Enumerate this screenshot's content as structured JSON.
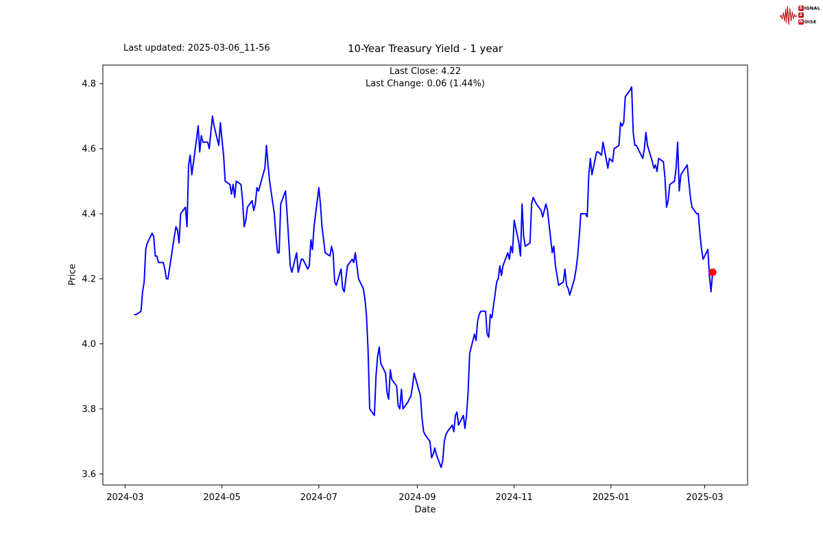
{
  "header": {
    "last_updated": "Last updated: 2025-03-06_11-56"
  },
  "logo": {
    "badge1": "S",
    "rest1": "IGNAL",
    "badge2": "2",
    "badge3": "N",
    "rest3": "OISE",
    "color": "#c41e24"
  },
  "chart_data": {
    "type": "line",
    "title": "10-Year Treasury Yield - 1 year",
    "subtitle_line1": "Last Close: 4.22",
    "subtitle_line2": "Last Change: 0.06 (1.44%)",
    "last_close": 4.22,
    "last_change": 0.06,
    "last_change_pct": "1.44%",
    "xlabel": "Date",
    "ylabel": "Price",
    "x_tick_labels": [
      "2024-03",
      "2024-05",
      "2024-07",
      "2024-09",
      "2024-11",
      "2025-01",
      "2025-03"
    ],
    "y_tick_labels": [
      "3.6",
      "3.8",
      "4.0",
      "4.2",
      "4.4",
      "4.6",
      "4.8"
    ],
    "xlim": [
      "2024-02-16",
      "2025-03-28"
    ],
    "ylim": [
      3.566,
      4.857
    ],
    "grid": false,
    "legend": "none",
    "line_color": "#0000ff",
    "marker_color": "#ff0000",
    "series": [
      {
        "name": "10-Year Treasury Yield",
        "points": [
          [
            "2024-03-07",
            4.09
          ],
          [
            "2024-03-08",
            4.09
          ],
          [
            "2024-03-11",
            4.1
          ],
          [
            "2024-03-12",
            4.16
          ],
          [
            "2024-03-13",
            4.19
          ],
          [
            "2024-03-14",
            4.29
          ],
          [
            "2024-03-15",
            4.31
          ],
          [
            "2024-03-18",
            4.34
          ],
          [
            "2024-03-19",
            4.33
          ],
          [
            "2024-03-20",
            4.27
          ],
          [
            "2024-03-21",
            4.27
          ],
          [
            "2024-03-22",
            4.25
          ],
          [
            "2024-03-25",
            4.25
          ],
          [
            "2024-03-26",
            4.23
          ],
          [
            "2024-03-27",
            4.2
          ],
          [
            "2024-03-28",
            4.2
          ],
          [
            "2024-04-01",
            4.33
          ],
          [
            "2024-04-02",
            4.36
          ],
          [
            "2024-04-03",
            4.35
          ],
          [
            "2024-04-04",
            4.31
          ],
          [
            "2024-04-05",
            4.4
          ],
          [
            "2024-04-08",
            4.42
          ],
          [
            "2024-04-09",
            4.36
          ],
          [
            "2024-04-10",
            4.55
          ],
          [
            "2024-04-11",
            4.58
          ],
          [
            "2024-04-12",
            4.52
          ],
          [
            "2024-04-15",
            4.63
          ],
          [
            "2024-04-16",
            4.67
          ],
          [
            "2024-04-17",
            4.59
          ],
          [
            "2024-04-18",
            4.64
          ],
          [
            "2024-04-19",
            4.62
          ],
          [
            "2024-04-22",
            4.62
          ],
          [
            "2024-04-23",
            4.6
          ],
          [
            "2024-04-24",
            4.65
          ],
          [
            "2024-04-25",
            4.7
          ],
          [
            "2024-04-26",
            4.67
          ],
          [
            "2024-04-29",
            4.61
          ],
          [
            "2024-04-30",
            4.68
          ],
          [
            "2024-05-01",
            4.63
          ],
          [
            "2024-05-02",
            4.58
          ],
          [
            "2024-05-03",
            4.5
          ],
          [
            "2024-05-06",
            4.49
          ],
          [
            "2024-05-07",
            4.46
          ],
          [
            "2024-05-08",
            4.49
          ],
          [
            "2024-05-09",
            4.45
          ],
          [
            "2024-05-10",
            4.5
          ],
          [
            "2024-05-13",
            4.49
          ],
          [
            "2024-05-14",
            4.44
          ],
          [
            "2024-05-15",
            4.36
          ],
          [
            "2024-05-16",
            4.38
          ],
          [
            "2024-05-17",
            4.42
          ],
          [
            "2024-05-20",
            4.44
          ],
          [
            "2024-05-21",
            4.41
          ],
          [
            "2024-05-22",
            4.43
          ],
          [
            "2024-05-23",
            4.48
          ],
          [
            "2024-05-24",
            4.47
          ],
          [
            "2024-05-28",
            4.54
          ],
          [
            "2024-05-29",
            4.61
          ],
          [
            "2024-05-30",
            4.55
          ],
          [
            "2024-05-31",
            4.5
          ],
          [
            "2024-06-03",
            4.4
          ],
          [
            "2024-06-04",
            4.33
          ],
          [
            "2024-06-05",
            4.28
          ],
          [
            "2024-06-06",
            4.28
          ],
          [
            "2024-06-07",
            4.43
          ],
          [
            "2024-06-10",
            4.47
          ],
          [
            "2024-06-11",
            4.4
          ],
          [
            "2024-06-12",
            4.32
          ],
          [
            "2024-06-13",
            4.24
          ],
          [
            "2024-06-14",
            4.22
          ],
          [
            "2024-06-17",
            4.28
          ],
          [
            "2024-06-18",
            4.22
          ],
          [
            "2024-06-20",
            4.26
          ],
          [
            "2024-06-21",
            4.26
          ],
          [
            "2024-06-24",
            4.23
          ],
          [
            "2024-06-25",
            4.24
          ],
          [
            "2024-06-26",
            4.32
          ],
          [
            "2024-06-27",
            4.29
          ],
          [
            "2024-06-28",
            4.36
          ],
          [
            "2024-07-01",
            4.48
          ],
          [
            "2024-07-02",
            4.43
          ],
          [
            "2024-07-03",
            4.36
          ],
          [
            "2024-07-05",
            4.28
          ],
          [
            "2024-07-08",
            4.27
          ],
          [
            "2024-07-09",
            4.3
          ],
          [
            "2024-07-10",
            4.28
          ],
          [
            "2024-07-11",
            4.19
          ],
          [
            "2024-07-12",
            4.18
          ],
          [
            "2024-07-15",
            4.23
          ],
          [
            "2024-07-16",
            4.17
          ],
          [
            "2024-07-17",
            4.16
          ],
          [
            "2024-07-18",
            4.2
          ],
          [
            "2024-07-19",
            4.24
          ],
          [
            "2024-07-22",
            4.26
          ],
          [
            "2024-07-23",
            4.25
          ],
          [
            "2024-07-24",
            4.28
          ],
          [
            "2024-07-25",
            4.24
          ],
          [
            "2024-07-26",
            4.2
          ],
          [
            "2024-07-29",
            4.17
          ],
          [
            "2024-07-30",
            4.14
          ],
          [
            "2024-07-31",
            4.09
          ],
          [
            "2024-08-01",
            3.98
          ],
          [
            "2024-08-02",
            3.8
          ],
          [
            "2024-08-05",
            3.78
          ],
          [
            "2024-08-06",
            3.9
          ],
          [
            "2024-08-07",
            3.96
          ],
          [
            "2024-08-08",
            3.99
          ],
          [
            "2024-08-09",
            3.94
          ],
          [
            "2024-08-12",
            3.91
          ],
          [
            "2024-08-13",
            3.85
          ],
          [
            "2024-08-14",
            3.83
          ],
          [
            "2024-08-15",
            3.92
          ],
          [
            "2024-08-16",
            3.89
          ],
          [
            "2024-08-19",
            3.87
          ],
          [
            "2024-08-20",
            3.81
          ],
          [
            "2024-08-21",
            3.8
          ],
          [
            "2024-08-22",
            3.86
          ],
          [
            "2024-08-23",
            3.8
          ],
          [
            "2024-08-26",
            3.82
          ],
          [
            "2024-08-27",
            3.83
          ],
          [
            "2024-08-28",
            3.84
          ],
          [
            "2024-08-29",
            3.87
          ],
          [
            "2024-08-30",
            3.91
          ],
          [
            "2024-09-03",
            3.84
          ],
          [
            "2024-09-04",
            3.77
          ],
          [
            "2024-09-05",
            3.73
          ],
          [
            "2024-09-06",
            3.72
          ],
          [
            "2024-09-09",
            3.7
          ],
          [
            "2024-09-10",
            3.65
          ],
          [
            "2024-09-11",
            3.66
          ],
          [
            "2024-09-12",
            3.68
          ],
          [
            "2024-09-13",
            3.66
          ],
          [
            "2024-09-16",
            3.62
          ],
          [
            "2024-09-17",
            3.64
          ],
          [
            "2024-09-18",
            3.7
          ],
          [
            "2024-09-19",
            3.72
          ],
          [
            "2024-09-20",
            3.73
          ],
          [
            "2024-09-23",
            3.75
          ],
          [
            "2024-09-24",
            3.73
          ],
          [
            "2024-09-25",
            3.78
          ],
          [
            "2024-09-26",
            3.79
          ],
          [
            "2024-09-27",
            3.75
          ],
          [
            "2024-09-30",
            3.78
          ],
          [
            "2024-10-01",
            3.74
          ],
          [
            "2024-10-02",
            3.78
          ],
          [
            "2024-10-03",
            3.85
          ],
          [
            "2024-10-04",
            3.97
          ],
          [
            "2024-10-07",
            4.03
          ],
          [
            "2024-10-08",
            4.01
          ],
          [
            "2024-10-09",
            4.07
          ],
          [
            "2024-10-10",
            4.09
          ],
          [
            "2024-10-11",
            4.1
          ],
          [
            "2024-10-14",
            4.1
          ],
          [
            "2024-10-15",
            4.03
          ],
          [
            "2024-10-16",
            4.02
          ],
          [
            "2024-10-17",
            4.09
          ],
          [
            "2024-10-18",
            4.08
          ],
          [
            "2024-10-21",
            4.19
          ],
          [
            "2024-10-22",
            4.2
          ],
          [
            "2024-10-23",
            4.24
          ],
          [
            "2024-10-24",
            4.21
          ],
          [
            "2024-10-25",
            4.24
          ],
          [
            "2024-10-28",
            4.28
          ],
          [
            "2024-10-29",
            4.26
          ],
          [
            "2024-10-30",
            4.3
          ],
          [
            "2024-10-31",
            4.28
          ],
          [
            "2024-11-01",
            4.38
          ],
          [
            "2024-11-04",
            4.31
          ],
          [
            "2024-11-05",
            4.27
          ],
          [
            "2024-11-06",
            4.43
          ],
          [
            "2024-11-07",
            4.33
          ],
          [
            "2024-11-08",
            4.3
          ],
          [
            "2024-11-11",
            4.31
          ],
          [
            "2024-11-12",
            4.43
          ],
          [
            "2024-11-13",
            4.45
          ],
          [
            "2024-11-14",
            4.44
          ],
          [
            "2024-11-15",
            4.43
          ],
          [
            "2024-11-18",
            4.41
          ],
          [
            "2024-11-19",
            4.39
          ],
          [
            "2024-11-20",
            4.41
          ],
          [
            "2024-11-21",
            4.43
          ],
          [
            "2024-11-22",
            4.41
          ],
          [
            "2024-11-25",
            4.28
          ],
          [
            "2024-11-26",
            4.3
          ],
          [
            "2024-11-27",
            4.24
          ],
          [
            "2024-11-29",
            4.18
          ],
          [
            "2024-12-02",
            4.19
          ],
          [
            "2024-12-03",
            4.23
          ],
          [
            "2024-12-04",
            4.18
          ],
          [
            "2024-12-05",
            4.17
          ],
          [
            "2024-12-06",
            4.15
          ],
          [
            "2024-12-09",
            4.2
          ],
          [
            "2024-12-10",
            4.23
          ],
          [
            "2024-12-11",
            4.27
          ],
          [
            "2024-12-12",
            4.33
          ],
          [
            "2024-12-13",
            4.4
          ],
          [
            "2024-12-16",
            4.4
          ],
          [
            "2024-12-17",
            4.39
          ],
          [
            "2024-12-18",
            4.52
          ],
          [
            "2024-12-19",
            4.57
          ],
          [
            "2024-12-20",
            4.52
          ],
          [
            "2024-12-23",
            4.59
          ],
          [
            "2024-12-24",
            4.59
          ],
          [
            "2024-12-26",
            4.58
          ],
          [
            "2024-12-27",
            4.62
          ],
          [
            "2024-12-30",
            4.54
          ],
          [
            "2024-12-31",
            4.57
          ],
          [
            "2025-01-02",
            4.56
          ],
          [
            "2025-01-03",
            4.6
          ],
          [
            "2025-01-06",
            4.61
          ],
          [
            "2025-01-07",
            4.68
          ],
          [
            "2025-01-08",
            4.67
          ],
          [
            "2025-01-09",
            4.68
          ],
          [
            "2025-01-10",
            4.76
          ],
          [
            "2025-01-13",
            4.78
          ],
          [
            "2025-01-14",
            4.79
          ],
          [
            "2025-01-15",
            4.65
          ],
          [
            "2025-01-16",
            4.61
          ],
          [
            "2025-01-17",
            4.61
          ],
          [
            "2025-01-21",
            4.57
          ],
          [
            "2025-01-22",
            4.6
          ],
          [
            "2025-01-23",
            4.65
          ],
          [
            "2025-01-24",
            4.61
          ],
          [
            "2025-01-27",
            4.56
          ],
          [
            "2025-01-28",
            4.54
          ],
          [
            "2025-01-29",
            4.55
          ],
          [
            "2025-01-30",
            4.53
          ],
          [
            "2025-01-31",
            4.57
          ],
          [
            "2025-02-03",
            4.56
          ],
          [
            "2025-02-04",
            4.51
          ],
          [
            "2025-02-05",
            4.42
          ],
          [
            "2025-02-06",
            4.44
          ],
          [
            "2025-02-07",
            4.49
          ],
          [
            "2025-02-10",
            4.5
          ],
          [
            "2025-02-11",
            4.54
          ],
          [
            "2025-02-12",
            4.62
          ],
          [
            "2025-02-13",
            4.47
          ],
          [
            "2025-02-14",
            4.52
          ],
          [
            "2025-02-18",
            4.55
          ],
          [
            "2025-02-19",
            4.5
          ],
          [
            "2025-02-20",
            4.45
          ],
          [
            "2025-02-21",
            4.42
          ],
          [
            "2025-02-24",
            4.4
          ],
          [
            "2025-02-25",
            4.4
          ],
          [
            "2025-02-26",
            4.34
          ],
          [
            "2025-02-27",
            4.29
          ],
          [
            "2025-02-28",
            4.26
          ],
          [
            "2025-03-03",
            4.29
          ],
          [
            "2025-03-04",
            4.21
          ],
          [
            "2025-03-05",
            4.16
          ],
          [
            "2025-03-06",
            4.22
          ]
        ]
      }
    ]
  }
}
